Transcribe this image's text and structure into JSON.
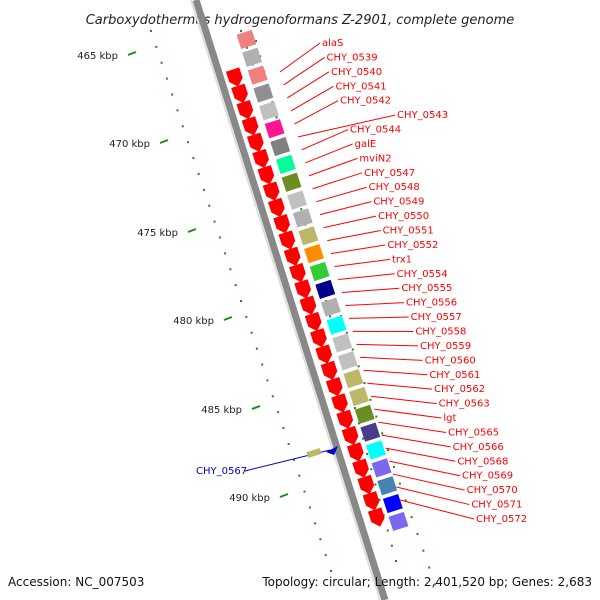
{
  "title": "Carboxydothermus hydrogenoformans Z-2901, complete genome",
  "accession": "Accession: NC_007503",
  "topology": "Topology: circular; Length: 2,401,520 bp; Genes: 2,683",
  "colors": {
    "forward_gene": "#ff0000",
    "reverse_label": "#0000cc",
    "backbone": "#888888",
    "tick": "#1a8a1a",
    "label_line": "#ff0000"
  },
  "kbp_labels": [
    "465 kbp",
    "470 kbp",
    "475 kbp",
    "480 kbp",
    "485 kbp",
    "490 kbp"
  ],
  "forward_genes": [
    "alaS",
    "CHY_0539",
    "CHY_0540",
    "CHY_0541",
    "CHY_0542",
    "CHY_0543",
    "CHY_0544",
    "galE",
    "mviN2",
    "CHY_0547",
    "CHY_0548",
    "CHY_0549",
    "CHY_0550",
    "CHY_0551",
    "CHY_0552",
    "trx1",
    "CHY_0554",
    "CHY_0555",
    "CHY_0556",
    "CHY_0557",
    "CHY_0558",
    "CHY_0559",
    "CHY_0560",
    "CHY_0561",
    "CHY_0562",
    "CHY_0563",
    "lgt",
    "CHY_0565",
    "CHY_0566",
    "CHY_0568",
    "CHY_0569",
    "CHY_0570",
    "CHY_0571",
    "CHY_0572"
  ],
  "reverse_genes": [
    "CHY_0567"
  ],
  "cog_colors": [
    "#f08080",
    "#b0b0b0",
    "#f08080",
    "#909090",
    "#c0c0c0",
    "#ff1493",
    "#808080",
    "#00ff99",
    "#6b8e23",
    "#c0c0c0",
    "#b0b0b0",
    "#bdb76b",
    "#ff8c00",
    "#32cd32",
    "#00008b",
    "#b0b0b0",
    "#00ffff",
    "#c0c0c0",
    "#c0c0c0",
    "#bdb76b",
    "#bdb76b",
    "#6b8e23",
    "#483d8b",
    "#00ffff",
    "#7b68ee",
    "#4682b4",
    "#0000ff",
    "#7b68ee"
  ]
}
